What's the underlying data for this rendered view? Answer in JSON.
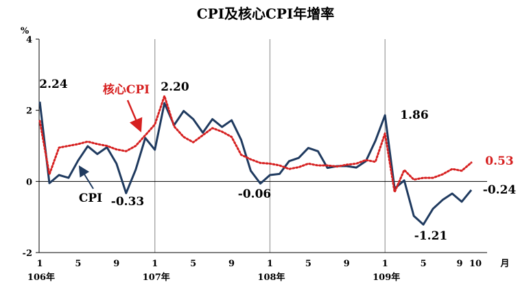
{
  "chart_data": {
    "type": "line",
    "title": "CPI及核心CPI年增率",
    "y_unit": "%",
    "x_unit": "月",
    "ylim": [
      -2,
      4
    ],
    "y_ticks": [
      "4",
      "2",
      "0",
      "-2"
    ],
    "x_tick_labels": [
      "1",
      "5",
      "9",
      "1",
      "5",
      "9",
      "1",
      "5",
      "9",
      "1",
      "5",
      "9",
      "10"
    ],
    "year_labels": [
      "106年",
      "107年",
      "108年",
      "109年"
    ],
    "x": [
      "106/1",
      "106/2",
      "106/3",
      "106/4",
      "106/5",
      "106/6",
      "106/7",
      "106/8",
      "106/9",
      "106/10",
      "106/11",
      "106/12",
      "107/1",
      "107/2",
      "107/3",
      "107/4",
      "107/5",
      "107/6",
      "107/7",
      "107/8",
      "107/9",
      "107/10",
      "107/11",
      "107/12",
      "108/1",
      "108/2",
      "108/3",
      "108/4",
      "108/5",
      "108/6",
      "108/7",
      "108/8",
      "108/9",
      "108/10",
      "108/11",
      "108/12",
      "109/1",
      "109/2",
      "109/3",
      "109/4",
      "109/5",
      "109/6",
      "109/7",
      "109/8",
      "109/9",
      "109/10"
    ],
    "series": [
      {
        "name": "CPI",
        "color": "#1f3a5f",
        "style": "solid",
        "values": [
          2.24,
          -0.05,
          0.18,
          0.1,
          0.59,
          0.99,
          0.77,
          0.96,
          0.5,
          -0.33,
          0.33,
          1.22,
          0.89,
          2.2,
          1.58,
          1.98,
          1.75,
          1.37,
          1.75,
          1.53,
          1.72,
          1.17,
          0.3,
          -0.06,
          0.18,
          0.21,
          0.57,
          0.66,
          0.94,
          0.85,
          0.38,
          0.43,
          0.43,
          0.39,
          0.57,
          1.14,
          1.86,
          -0.2,
          0.03,
          -0.97,
          -1.21,
          -0.77,
          -0.52,
          -0.34,
          -0.57,
          -0.24
        ]
      },
      {
        "name": "核心CPI",
        "color": "#d62020",
        "style": "dotted",
        "values": [
          1.7,
          0.2,
          0.95,
          1.0,
          1.05,
          1.12,
          1.05,
          1.0,
          0.9,
          0.85,
          1.0,
          1.3,
          1.6,
          2.4,
          1.55,
          1.25,
          1.1,
          1.3,
          1.5,
          1.4,
          1.25,
          0.75,
          0.62,
          0.52,
          0.5,
          0.45,
          0.35,
          0.4,
          0.5,
          0.45,
          0.45,
          0.42,
          0.47,
          0.5,
          0.6,
          0.55,
          1.35,
          -0.3,
          0.32,
          0.05,
          0.1,
          0.1,
          0.2,
          0.35,
          0.3,
          0.53
        ]
      }
    ],
    "annotations": [
      {
        "text": "2.24",
        "color": "#000000"
      },
      {
        "text": "-0.33",
        "color": "#000000"
      },
      {
        "text": "2.20",
        "color": "#000000"
      },
      {
        "text": "-0.06",
        "color": "#000000"
      },
      {
        "text": "1.86",
        "color": "#000000"
      },
      {
        "text": "-1.21",
        "color": "#000000"
      },
      {
        "text": "-0.24",
        "color": "#000000"
      },
      {
        "text": "0.53",
        "color": "#d62020"
      }
    ]
  }
}
